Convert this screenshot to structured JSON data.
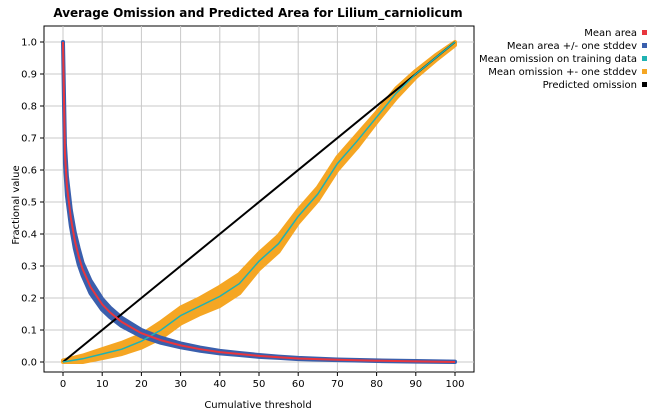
{
  "chart_data": {
    "type": "line",
    "title": "Average Omission and Predicted Area for Lilium_carniolicum",
    "xlabel": "Cumulative threshold",
    "ylabel": "Fractional value",
    "xlim": [
      0,
      100
    ],
    "ylim": [
      0,
      1
    ],
    "x_ticks": [
      "0",
      "10",
      "20",
      "30",
      "40",
      "50",
      "60",
      "70",
      "80",
      "90",
      "100"
    ],
    "y_ticks": [
      "0.0",
      "0.1",
      "0.2",
      "0.3",
      "0.4",
      "0.5",
      "0.6",
      "0.7",
      "0.8",
      "0.9",
      "1.0"
    ],
    "grid": true,
    "legend_position": "top-right",
    "legend": [
      {
        "label": "Mean area",
        "color": "#e8363e"
      },
      {
        "label": "Mean area +/- one stddev",
        "color": "#3a5fad"
      },
      {
        "label": "Mean omission on training data",
        "color": "#20b2b2"
      },
      {
        "label": "Mean omission +- one stddev",
        "color": "#f5a623"
      },
      {
        "label": "Predicted omission",
        "color": "#000000"
      }
    ],
    "series": [
      {
        "name": "Mean area",
        "color": "#e8363e",
        "x": [
          0,
          0.5,
          1,
          2,
          3,
          4,
          5,
          7,
          10,
          12,
          15,
          20,
          25,
          30,
          35,
          40,
          45,
          50,
          55,
          60,
          70,
          80,
          90,
          100
        ],
        "y": [
          1.0,
          0.65,
          0.55,
          0.45,
          0.38,
          0.33,
          0.29,
          0.235,
          0.18,
          0.155,
          0.125,
          0.09,
          0.068,
          0.052,
          0.04,
          0.031,
          0.025,
          0.019,
          0.015,
          0.011,
          0.007,
          0.004,
          0.002,
          0.0
        ]
      },
      {
        "name": "Mean area +/- one stddev",
        "color": "#3a5fad",
        "x": [
          0,
          0.5,
          1,
          2,
          3,
          4,
          5,
          7,
          10,
          12,
          15,
          20,
          25,
          30,
          35,
          40,
          45,
          50,
          55,
          60,
          70,
          80,
          90,
          100
        ],
        "y_upper": [
          1.0,
          0.68,
          0.58,
          0.475,
          0.405,
          0.355,
          0.31,
          0.255,
          0.197,
          0.17,
          0.138,
          0.1,
          0.076,
          0.058,
          0.045,
          0.035,
          0.028,
          0.022,
          0.017,
          0.013,
          0.008,
          0.005,
          0.003,
          0.001
        ],
        "y_lower": [
          1.0,
          0.62,
          0.52,
          0.425,
          0.355,
          0.305,
          0.27,
          0.215,
          0.163,
          0.14,
          0.112,
          0.08,
          0.06,
          0.046,
          0.035,
          0.027,
          0.022,
          0.016,
          0.013,
          0.009,
          0.006,
          0.003,
          0.001,
          0.0
        ]
      },
      {
        "name": "Mean omission on training data",
        "color": "#20b2b2",
        "x": [
          0,
          5,
          10,
          15,
          20,
          25,
          30,
          35,
          40,
          45,
          50,
          55,
          60,
          65,
          70,
          75,
          80,
          85,
          90,
          95,
          100
        ],
        "y": [
          0.0,
          0.01,
          0.025,
          0.04,
          0.065,
          0.1,
          0.145,
          0.175,
          0.205,
          0.245,
          0.315,
          0.37,
          0.455,
          0.525,
          0.62,
          0.69,
          0.765,
          0.84,
          0.9,
          0.95,
          1.0
        ]
      },
      {
        "name": "Mean omission +- one stddev",
        "color": "#f5a623",
        "x": [
          0,
          5,
          10,
          15,
          20,
          25,
          30,
          35,
          40,
          45,
          50,
          55,
          60,
          65,
          70,
          75,
          80,
          85,
          90,
          95,
          100
        ],
        "y_upper": [
          0.005,
          0.02,
          0.04,
          0.06,
          0.085,
          0.125,
          0.17,
          0.2,
          0.235,
          0.275,
          0.34,
          0.395,
          0.475,
          0.545,
          0.64,
          0.71,
          0.78,
          0.855,
          0.91,
          0.958,
          1.0
        ],
        "y_lower": [
          0.0,
          0.0,
          0.012,
          0.025,
          0.045,
          0.075,
          0.12,
          0.15,
          0.175,
          0.215,
          0.29,
          0.345,
          0.435,
          0.505,
          0.6,
          0.67,
          0.75,
          0.825,
          0.89,
          0.942,
          0.99
        ]
      },
      {
        "name": "Predicted omission",
        "color": "#000000",
        "x": [
          0,
          100
        ],
        "y": [
          0,
          1
        ]
      }
    ]
  }
}
